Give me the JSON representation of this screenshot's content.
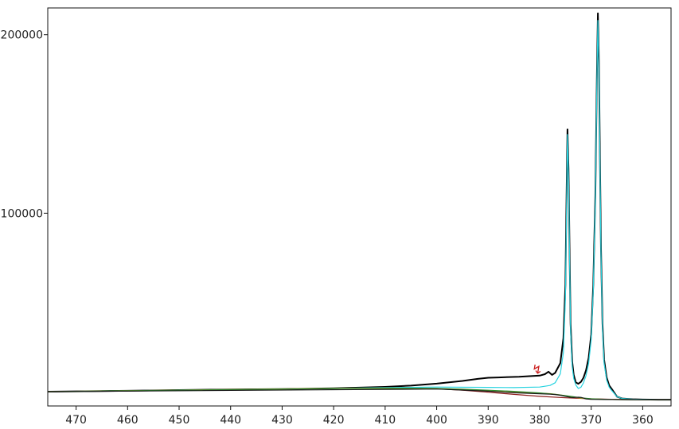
{
  "chart_data": {
    "type": "line",
    "title": "",
    "xlabel": "",
    "ylabel": "",
    "x_reversed": true,
    "xlim": [
      475.5,
      354.5
    ],
    "ylim": [
      -8000,
      215000
    ],
    "x_ticks": [
      470,
      460,
      450,
      440,
      430,
      420,
      410,
      400,
      390,
      380,
      370,
      360
    ],
    "x_tick_labels": [
      "470",
      "460",
      "450",
      "440",
      "430",
      "420",
      "410",
      "400",
      "390",
      "380",
      "370",
      "360"
    ],
    "y_ticks": [
      100000,
      200000
    ],
    "y_tick_labels": [
      "100000",
      "200000"
    ],
    "grid": false,
    "legend": "none",
    "annotation": {
      "text": "↯",
      "x": 380.5,
      "y": 10000,
      "color": "#cc2222"
    },
    "series": [
      {
        "role": "measured spectrum",
        "color": "#000000",
        "x": [
          475.5,
          470,
          460,
          450,
          440,
          430,
          420,
          410,
          405,
          400,
          395,
          392,
          390,
          388,
          386,
          384,
          382,
          380,
          379,
          378.3,
          377.6,
          377,
          376,
          375.4,
          375,
          374.8,
          374.6,
          374.4,
          374.2,
          374,
          373.7,
          373.4,
          373,
          372.5,
          372,
          371.5,
          371,
          370.5,
          370,
          369.6,
          369.2,
          368.9,
          368.7,
          368.5,
          368.3,
          368.1,
          367.8,
          367.5,
          367,
          366.5,
          366,
          365,
          364,
          362,
          360,
          357,
          354.5
        ],
        "y": [
          0,
          200,
          500,
          900,
          1200,
          1500,
          1900,
          2700,
          3400,
          4500,
          6000,
          7200,
          7800,
          8000,
          8200,
          8400,
          8700,
          9000,
          9800,
          11200,
          9400,
          10500,
          16000,
          30000,
          60000,
          105000,
          147000,
          125000,
          80000,
          38000,
          17000,
          9500,
          5200,
          4400,
          5500,
          7800,
          12000,
          19000,
          32000,
          60000,
          110000,
          175000,
          212000,
          185000,
          130000,
          80000,
          38000,
          18000,
          8000,
          3500,
          1500,
          -2800,
          -3800,
          -4200,
          -4400,
          -4500,
          -4500
        ]
      },
      {
        "role": "fit envelope",
        "color": "#27d3e0",
        "x": [
          475.5,
          470,
          460,
          450,
          440,
          430,
          420,
          410,
          400,
          390,
          385,
          380,
          378,
          377,
          376,
          375.4,
          375,
          374.8,
          374.6,
          374.4,
          374.2,
          374,
          373.7,
          373.4,
          373,
          372.5,
          372,
          371.5,
          371,
          370.5,
          370,
          369.6,
          369.2,
          368.9,
          368.7,
          368.5,
          368.3,
          368.1,
          367.8,
          367.5,
          367,
          366.5,
          366,
          365,
          364,
          362,
          360,
          357,
          354.5
        ],
        "y": [
          0,
          200,
          500,
          900,
          1200,
          1500,
          1800,
          2300,
          2600,
          2400,
          2300,
          2600,
          3500,
          5000,
          10000,
          22000,
          52000,
          98000,
          144000,
          122000,
          76000,
          34000,
          14000,
          7500,
          3800,
          1800,
          2500,
          5000,
          9000,
          16000,
          29000,
          57000,
          107000,
          172000,
          208000,
          182000,
          127000,
          77000,
          35000,
          16000,
          6500,
          2500,
          600,
          -2800,
          -3800,
          -4200,
          -4400,
          -4500,
          -4500
        ]
      },
      {
        "role": "background",
        "color": "#8b1a1a",
        "x": [
          475.5,
          460,
          440,
          420,
          410,
          400,
          395,
          390,
          385,
          380,
          375,
          370,
          365,
          360,
          354.5
        ],
        "y": [
          0,
          500,
          1200,
          1800,
          1900,
          1600,
          800,
          -300,
          -1500,
          -2600,
          -3400,
          -4000,
          -4300,
          -4500,
          -4500
        ]
      },
      {
        "role": "fitted component",
        "color": "#c9a227",
        "x": [
          475.5,
          420,
          410,
          400,
          395,
          390,
          385,
          380,
          378,
          376,
          374,
          372,
          370,
          366,
          362,
          354.5
        ],
        "y": [
          0,
          1900,
          2000,
          1900,
          1300,
          400,
          -400,
          -900,
          -1100,
          -1800,
          -2800,
          -3700,
          -4100,
          -4400,
          -4500,
          -4500
        ]
      },
      {
        "role": "fitted component",
        "color": "#2e8b2e",
        "x": [
          475.5,
          420,
          410,
          400,
          395,
          390,
          385,
          380,
          377,
          374,
          372,
          370,
          366,
          362,
          354.5
        ],
        "y": [
          0,
          1800,
          1900,
          1800,
          1400,
          800,
          200,
          -700,
          -1500,
          -2600,
          -3400,
          -4000,
          -4400,
          -4500,
          -4500
        ]
      },
      {
        "role": "fitted component",
        "color": "#1a1a1a",
        "x": [
          475.5,
          400,
          390,
          385,
          380,
          378,
          377,
          376,
          375,
          374,
          373.5,
          373,
          372.5,
          372,
          371.5,
          371,
          370,
          366,
          362,
          354.5
        ],
        "y": [
          0,
          1500,
          300,
          -600,
          -1200,
          -1400,
          -1600,
          -2000,
          -2600,
          -3200,
          -3300,
          -3200,
          -3100,
          -3200,
          -3600,
          -4100,
          -4300,
          -4400,
          -4500,
          -4500
        ]
      }
    ]
  }
}
